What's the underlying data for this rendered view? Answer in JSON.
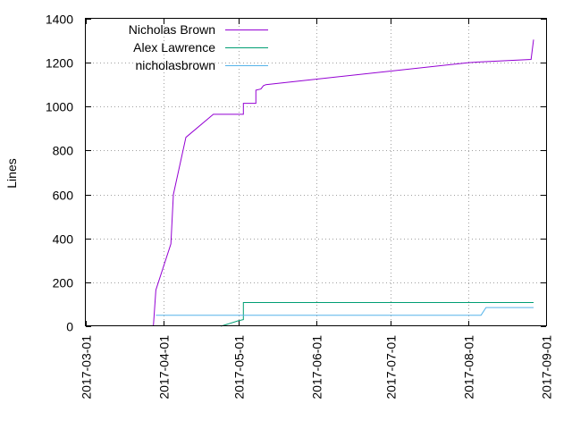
{
  "chart_data": {
    "type": "line",
    "title": "",
    "xlabel": "",
    "ylabel": "Lines",
    "x_axis_type": "date",
    "xlim": [
      "2017-03-01",
      "2017-09-01"
    ],
    "ylim": [
      0,
      1400
    ],
    "x_ticks": [
      "2017-03-01",
      "2017-04-01",
      "2017-05-01",
      "2017-06-01",
      "2017-07-01",
      "2017-08-01",
      "2017-09-01"
    ],
    "y_ticks": [
      0,
      200,
      400,
      600,
      800,
      1000,
      1200,
      1400
    ],
    "grid": true,
    "legend_position": "top-left",
    "series": [
      {
        "name": "Nicholas Brown",
        "color": "#9400d3",
        "points": [
          [
            "2017-03-28",
            0
          ],
          [
            "2017-03-29",
            165
          ],
          [
            "2017-04-04",
            375
          ],
          [
            "2017-04-05",
            600
          ],
          [
            "2017-04-10",
            860
          ],
          [
            "2017-04-21",
            965
          ],
          [
            "2017-05-03",
            965
          ],
          [
            "2017-05-03",
            1015
          ],
          [
            "2017-05-08",
            1015
          ],
          [
            "2017-05-08",
            1075
          ],
          [
            "2017-05-10",
            1080
          ],
          [
            "2017-05-11",
            1095
          ],
          [
            "2017-05-12",
            1100
          ],
          [
            "2017-08-01",
            1200
          ],
          [
            "2017-08-05",
            1203
          ],
          [
            "2017-08-26",
            1215
          ],
          [
            "2017-08-27",
            1305
          ]
        ]
      },
      {
        "name": "Alex Lawrence",
        "color": "#009e73",
        "points": [
          [
            "2017-04-24",
            0
          ],
          [
            "2017-05-01",
            25
          ],
          [
            "2017-05-03",
            30
          ],
          [
            "2017-05-03",
            108
          ],
          [
            "2017-08-27",
            108
          ]
        ]
      },
      {
        "name": "nicholasbrown",
        "color": "#56b4e9",
        "points": [
          [
            "2017-03-29",
            50
          ],
          [
            "2017-05-03",
            50
          ],
          [
            "2017-08-06",
            50
          ],
          [
            "2017-08-08",
            85
          ],
          [
            "2017-08-27",
            85
          ]
        ]
      }
    ]
  }
}
